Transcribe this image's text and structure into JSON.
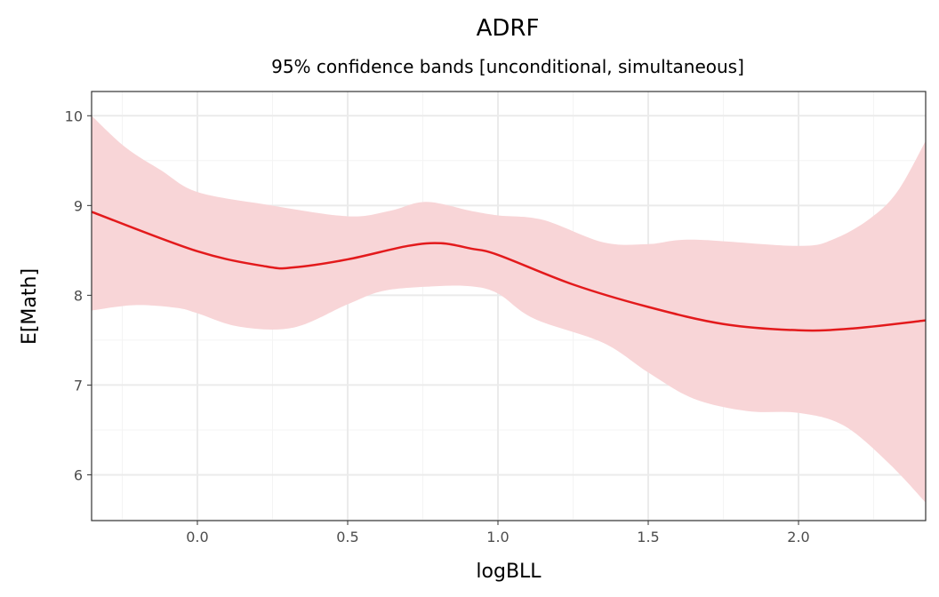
{
  "chart_data": {
    "type": "line",
    "title": "ADRF",
    "subtitle": "95% confidence bands [unconditional, simultaneous]",
    "xlabel": "logBLL",
    "ylabel": "E[Math]",
    "xlim": [
      -0.352,
      2.423
    ],
    "ylim": [
      5.49,
      10.27
    ],
    "xticks": [
      0.0,
      0.5,
      1.0,
      1.5,
      2.0
    ],
    "xtick_labels": [
      "0.0",
      "0.5",
      "1.0",
      "1.5",
      "2.0"
    ],
    "yticks": [
      6,
      7,
      8,
      9,
      10
    ],
    "ytick_labels": [
      "6",
      "7",
      "8",
      "9",
      "10"
    ],
    "grid": true,
    "colors": {
      "line": "#e31a1c",
      "band": "#f8d5d7",
      "grid_major": "#ebebeb",
      "grid_minor": "#f4f4f4"
    },
    "series": [
      {
        "name": "estimate",
        "x": [
          -0.352,
          0.0,
          0.23,
          0.32,
          0.5,
          0.7,
          0.81,
          0.91,
          1.0,
          1.25,
          1.5,
          1.75,
          2.0,
          2.18,
          2.423
        ],
        "y": [
          8.93,
          8.49,
          8.32,
          8.31,
          8.4,
          8.55,
          8.58,
          8.52,
          8.45,
          8.12,
          7.87,
          7.68,
          7.61,
          7.63,
          7.72
        ]
      }
    ],
    "band_upper": {
      "x": [
        -0.352,
        -0.24,
        -0.12,
        0.0,
        0.23,
        0.5,
        0.64,
        0.76,
        0.91,
        1.0,
        1.15,
        1.35,
        1.5,
        1.65,
        2.0,
        2.12,
        2.24,
        2.33,
        2.423
      ],
      "y": [
        10.0,
        9.65,
        9.39,
        9.15,
        9.01,
        8.88,
        8.94,
        9.04,
        8.94,
        8.89,
        8.84,
        8.59,
        8.57,
        8.62,
        8.55,
        8.63,
        8.86,
        9.16,
        9.72
      ]
    },
    "band_lower": {
      "x": [
        -0.352,
        -0.21,
        -0.07,
        0.0,
        0.14,
        0.32,
        0.5,
        0.62,
        0.79,
        0.91,
        1.0,
        1.12,
        1.35,
        1.5,
        1.65,
        1.83,
        2.0,
        2.15,
        2.3,
        2.423
      ],
      "y": [
        7.83,
        7.89,
        7.86,
        7.8,
        7.65,
        7.64,
        7.9,
        8.05,
        8.1,
        8.1,
        8.02,
        7.74,
        7.47,
        7.14,
        6.85,
        6.71,
        6.69,
        6.55,
        6.13,
        5.69
      ]
    }
  }
}
